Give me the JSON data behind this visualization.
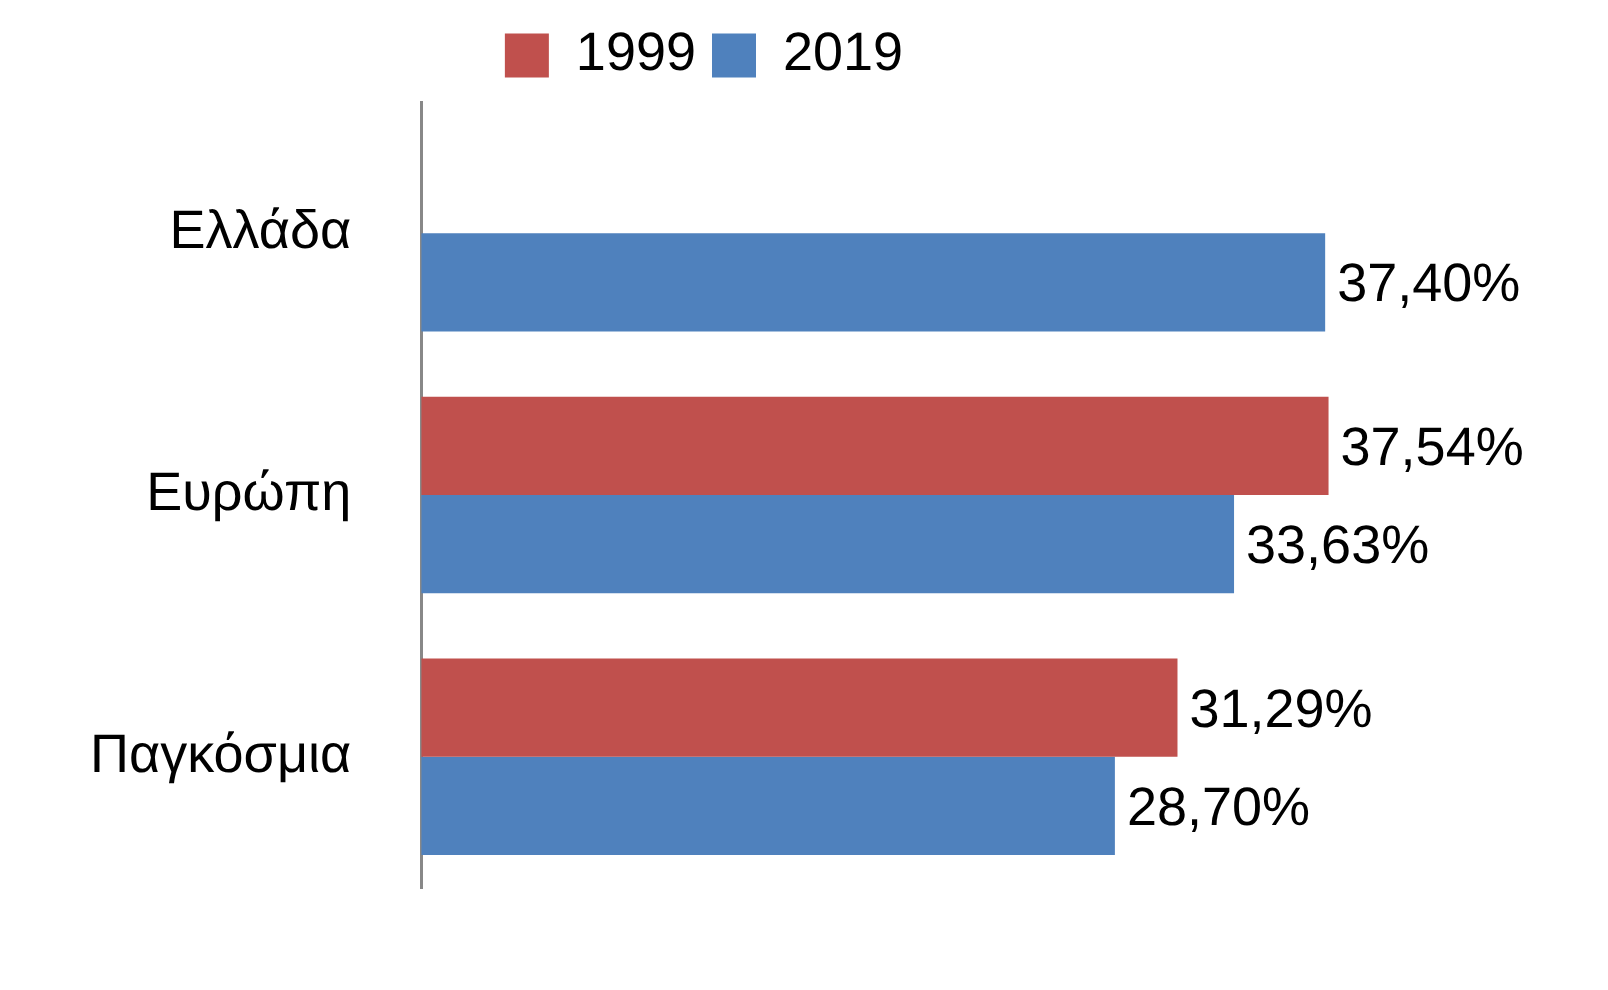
{
  "chart_data": {
    "type": "bar",
    "orientation": "horizontal",
    "categories": [
      "Ελλάδα",
      "Ευρώπη",
      "Παγκόσμια"
    ],
    "series": [
      {
        "name": "1999",
        "color": "#c0504d",
        "values": [
          null,
          37.54,
          31.29
        ],
        "value_labels": [
          null,
          "37,54%",
          "31,29%"
        ]
      },
      {
        "name": "2019",
        "color": "#4f81bd",
        "values": [
          37.4,
          33.63,
          28.7
        ],
        "value_labels": [
          "37,40%",
          "33,63%",
          "28,70%"
        ]
      }
    ],
    "tick_labels": "y",
    "legend": "top"
  }
}
